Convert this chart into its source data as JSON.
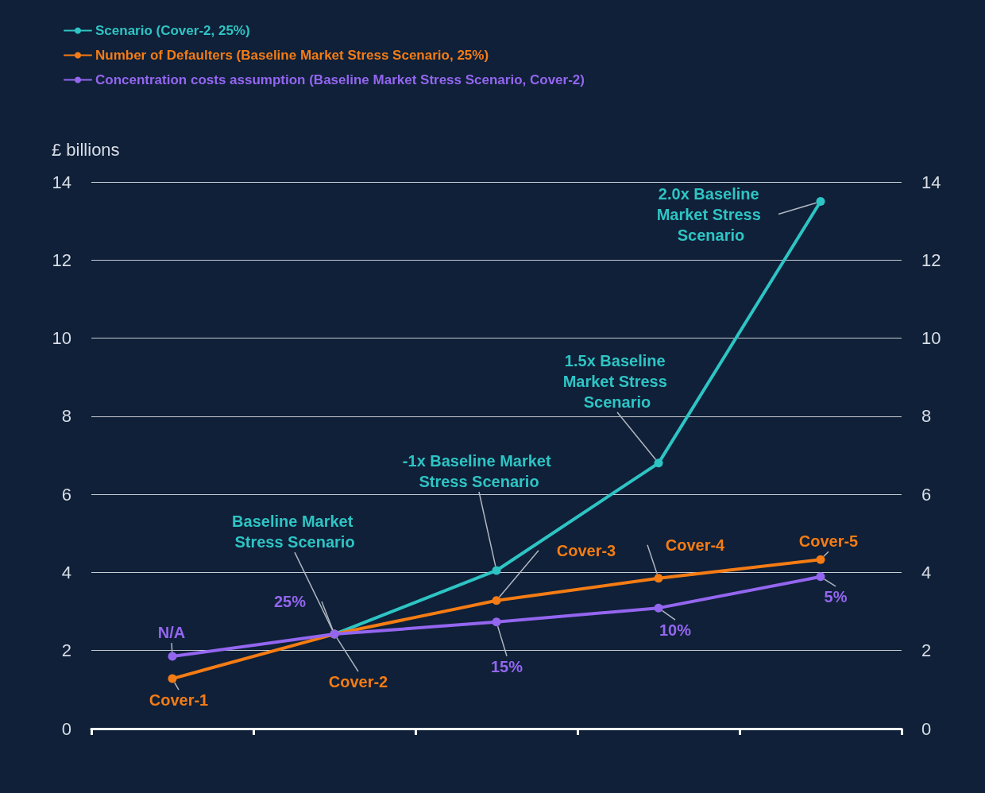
{
  "chart_data": {
    "type": "line",
    "ylabel": "£ billions",
    "categories": [
      null,
      null,
      null,
      null,
      null
    ],
    "series": [
      {
        "name": "Scenario (Cover-2, 25%)",
        "color": "#2ec4c4",
        "values": [
          null,
          2.42,
          4.05,
          6.8,
          13.5
        ],
        "value_labels": [
          null,
          "Baseline Market Stress Scenario",
          "-1x Baseline Market Stress Scenario",
          "1.5x Baseline Market Stress Scenario",
          "2.0x Baseline Market Stress Scenario"
        ]
      },
      {
        "name": "Number of Defaulters (Baseline Market Stress Scenario, 25%)",
        "color": "#f57c14",
        "values": [
          1.28,
          2.42,
          3.28,
          3.85,
          4.33
        ],
        "value_labels": [
          "Cover-1",
          "Cover-2",
          "Cover-3",
          "Cover-4",
          "Cover-5"
        ]
      },
      {
        "name": "Concentration costs assumption (Baseline Market Stress Scenario, Cover-2)",
        "color": "#9466f0",
        "values": [
          1.85,
          2.42,
          2.73,
          3.09,
          3.89
        ]
      }
    ],
    "annotations": [
      "N/A",
      "25%",
      "15%",
      "10%",
      "5%"
    ],
    "ylim": [
      0,
      14
    ],
    "yticks": [
      0,
      2,
      4,
      6,
      8,
      10,
      12,
      14
    ],
    "y2lim": [
      0,
      14
    ],
    "y2ticks": [
      0,
      2,
      4,
      6,
      8,
      10,
      12,
      14
    ],
    "grid": "y",
    "legend": "top left",
    "marker": "circle",
    "line_style": "solid"
  }
}
